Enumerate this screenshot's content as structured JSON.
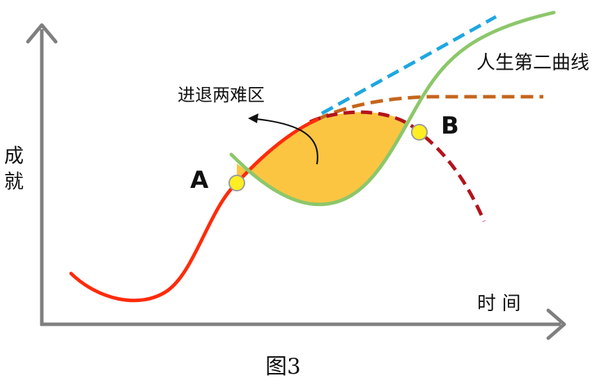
{
  "labels": {
    "y_axis": [
      "成",
      "就"
    ],
    "x_axis": "时 间",
    "second_curve": "人生第二曲线",
    "dilemma_zone": "进退两难区",
    "point_a": "A",
    "point_b": "B",
    "caption": "图3"
  },
  "colors": {
    "axis": "#7f7f7f",
    "first_curve": "#ff2b0a",
    "decline_dash": "#b3141c",
    "plateau_dash": "#c5651c",
    "growth_dash": "#1ea7e0",
    "second_curve": "#8cc76a",
    "dilemma_fill": "#fbc542",
    "point_fill": "#ffee22",
    "point_stroke": "#9a9a9a",
    "text": "#111111"
  },
  "icons": {
    "axis_arrows": "chevron-arrow-icon",
    "pointer": "curved-arrow-icon"
  }
}
